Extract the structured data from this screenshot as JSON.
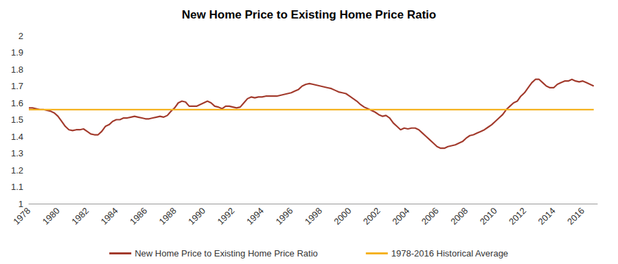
{
  "chart_data": {
    "type": "line",
    "title": "New Home Price to Existing Home Price Ratio",
    "x": [
      1978,
      1978.25,
      1978.5,
      1978.75,
      1979,
      1979.25,
      1979.5,
      1979.75,
      1980,
      1980.25,
      1980.5,
      1980.75,
      1981,
      1981.25,
      1981.5,
      1981.75,
      1982,
      1982.25,
      1982.5,
      1982.75,
      1983,
      1983.25,
      1983.5,
      1983.75,
      1984,
      1984.25,
      1984.5,
      1984.75,
      1985,
      1985.25,
      1985.5,
      1985.75,
      1986,
      1986.25,
      1986.5,
      1986.75,
      1987,
      1987.25,
      1987.5,
      1987.75,
      1988,
      1988.25,
      1988.5,
      1988.75,
      1989,
      1989.25,
      1989.5,
      1989.75,
      1990,
      1990.25,
      1990.5,
      1990.75,
      1991,
      1991.25,
      1991.5,
      1991.75,
      1992,
      1992.25,
      1992.5,
      1992.75,
      1993,
      1993.25,
      1993.5,
      1993.75,
      1994,
      1994.25,
      1994.5,
      1994.75,
      1995,
      1995.25,
      1995.5,
      1995.75,
      1996,
      1996.25,
      1996.5,
      1996.75,
      1997,
      1997.25,
      1997.5,
      1997.75,
      1998,
      1998.25,
      1998.5,
      1998.75,
      1999,
      1999.25,
      1999.5,
      1999.75,
      2000,
      2000.25,
      2000.5,
      2000.75,
      2001,
      2001.25,
      2001.5,
      2001.75,
      2002,
      2002.25,
      2002.5,
      2002.75,
      2003,
      2003.25,
      2003.5,
      2003.75,
      2004,
      2004.25,
      2004.5,
      2004.75,
      2005,
      2005.25,
      2005.5,
      2005.75,
      2006,
      2006.25,
      2006.5,
      2006.75,
      2007,
      2007.25,
      2007.5,
      2007.75,
      2008,
      2008.25,
      2008.5,
      2008.75,
      2009,
      2009.25,
      2009.5,
      2009.75,
      2010,
      2010.25,
      2010.5,
      2010.75,
      2011,
      2011.25,
      2011.5,
      2011.75,
      2012,
      2012.25,
      2012.5,
      2012.75,
      2013,
      2013.25,
      2013.5,
      2013.75,
      2014,
      2014.25,
      2014.5,
      2014.75,
      2015,
      2015.25,
      2015.5,
      2015.75,
      2016,
      2016.25,
      2016.5,
      2016.75
    ],
    "series": [
      {
        "name": "New Home Price to Existing Home Price Ratio",
        "color": "#a23a2c",
        "values": [
          1.57,
          1.57,
          1.565,
          1.56,
          1.56,
          1.555,
          1.55,
          1.54,
          1.52,
          1.49,
          1.46,
          1.44,
          1.435,
          1.44,
          1.44,
          1.445,
          1.43,
          1.415,
          1.41,
          1.41,
          1.43,
          1.46,
          1.47,
          1.49,
          1.5,
          1.5,
          1.51,
          1.51,
          1.515,
          1.52,
          1.515,
          1.51,
          1.505,
          1.505,
          1.51,
          1.515,
          1.52,
          1.515,
          1.525,
          1.55,
          1.57,
          1.6,
          1.61,
          1.605,
          1.58,
          1.58,
          1.58,
          1.59,
          1.6,
          1.61,
          1.6,
          1.58,
          1.575,
          1.565,
          1.58,
          1.58,
          1.575,
          1.57,
          1.575,
          1.6,
          1.625,
          1.635,
          1.63,
          1.635,
          1.635,
          1.64,
          1.64,
          1.64,
          1.64,
          1.645,
          1.65,
          1.655,
          1.66,
          1.67,
          1.68,
          1.7,
          1.71,
          1.715,
          1.71,
          1.705,
          1.7,
          1.695,
          1.69,
          1.685,
          1.675,
          1.665,
          1.66,
          1.655,
          1.64,
          1.625,
          1.61,
          1.59,
          1.575,
          1.565,
          1.555,
          1.545,
          1.53,
          1.52,
          1.525,
          1.51,
          1.48,
          1.46,
          1.44,
          1.45,
          1.445,
          1.45,
          1.45,
          1.44,
          1.42,
          1.4,
          1.38,
          1.36,
          1.34,
          1.33,
          1.33,
          1.34,
          1.345,
          1.35,
          1.36,
          1.37,
          1.39,
          1.405,
          1.41,
          1.42,
          1.43,
          1.44,
          1.455,
          1.47,
          1.49,
          1.51,
          1.53,
          1.56,
          1.58,
          1.6,
          1.61,
          1.64,
          1.66,
          1.69,
          1.72,
          1.74,
          1.74,
          1.72,
          1.7,
          1.69,
          1.69,
          1.71,
          1.72,
          1.73,
          1.73,
          1.74,
          1.73,
          1.725,
          1.73,
          1.72,
          1.71,
          1.7
        ]
      },
      {
        "name": "1978-2016 Historical Average",
        "color": "#f5b21f",
        "values": [
          1.56,
          1.56,
          1.56,
          1.56,
          1.56,
          1.56,
          1.56,
          1.56,
          1.56,
          1.56,
          1.56,
          1.56,
          1.56,
          1.56,
          1.56,
          1.56,
          1.56,
          1.56,
          1.56,
          1.56,
          1.56,
          1.56,
          1.56,
          1.56,
          1.56,
          1.56,
          1.56,
          1.56,
          1.56,
          1.56,
          1.56,
          1.56,
          1.56,
          1.56,
          1.56,
          1.56,
          1.56,
          1.56,
          1.56,
          1.56,
          1.56,
          1.56,
          1.56,
          1.56,
          1.56,
          1.56,
          1.56,
          1.56,
          1.56,
          1.56,
          1.56,
          1.56,
          1.56,
          1.56,
          1.56,
          1.56,
          1.56,
          1.56,
          1.56,
          1.56,
          1.56,
          1.56,
          1.56,
          1.56,
          1.56,
          1.56,
          1.56,
          1.56,
          1.56,
          1.56,
          1.56,
          1.56,
          1.56,
          1.56,
          1.56,
          1.56,
          1.56,
          1.56,
          1.56,
          1.56,
          1.56,
          1.56,
          1.56,
          1.56,
          1.56,
          1.56,
          1.56,
          1.56,
          1.56,
          1.56,
          1.56,
          1.56,
          1.56,
          1.56,
          1.56,
          1.56,
          1.56,
          1.56,
          1.56,
          1.56,
          1.56,
          1.56,
          1.56,
          1.56,
          1.56,
          1.56,
          1.56,
          1.56,
          1.56,
          1.56,
          1.56,
          1.56,
          1.56,
          1.56,
          1.56,
          1.56,
          1.56,
          1.56,
          1.56,
          1.56,
          1.56,
          1.56,
          1.56,
          1.56,
          1.56,
          1.56,
          1.56,
          1.56,
          1.56,
          1.56,
          1.56,
          1.56,
          1.56,
          1.56,
          1.56,
          1.56,
          1.56,
          1.56,
          1.56,
          1.56,
          1.56,
          1.56,
          1.56,
          1.56,
          1.56,
          1.56,
          1.56,
          1.56,
          1.56,
          1.56,
          1.56,
          1.56,
          1.56,
          1.56,
          1.56,
          1.56
        ]
      }
    ],
    "xlim": [
      1978,
      2017
    ],
    "xticks": [
      1978,
      1980,
      1982,
      1984,
      1986,
      1988,
      1990,
      1992,
      1994,
      1996,
      1998,
      2000,
      2002,
      2004,
      2006,
      2008,
      2010,
      2012,
      2014,
      2016
    ],
    "ylim": [
      1,
      2
    ],
    "yticks": [
      1,
      1.1,
      1.2,
      1.3,
      1.4,
      1.5,
      1.6,
      1.7,
      1.8,
      1.9,
      2
    ],
    "grid": false,
    "legend": "bottom"
  }
}
